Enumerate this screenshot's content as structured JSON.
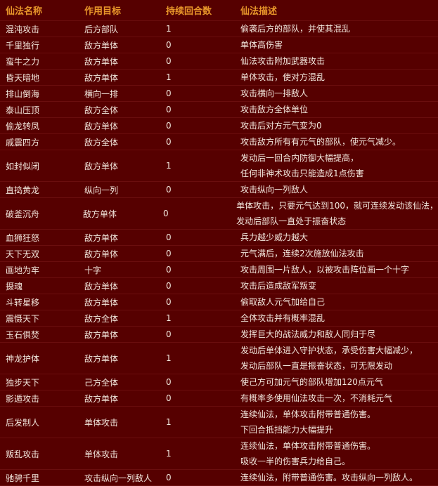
{
  "table": {
    "header": [
      "仙法名称",
      "作用目标",
      "持续回合数",
      "仙法描述"
    ],
    "rows": [
      [
        "混沌攻击",
        "后方部队",
        1,
        [
          "偷袭后方的部队，并使其混乱"
        ]
      ],
      [
        "千里独行",
        "敌方单体",
        0,
        [
          "单体高伤害"
        ]
      ],
      [
        "蛮牛之力",
        "敌方单体",
        0,
        [
          "仙法攻击附加武器攻击"
        ]
      ],
      [
        "昏天暗地",
        "敌方单体",
        1,
        [
          "单体攻击，使对方混乱"
        ]
      ],
      [
        "排山倒海",
        "横向一排",
        0,
        [
          "攻击横向一排敌人"
        ]
      ],
      [
        "泰山压顶",
        "敌方全体",
        0,
        [
          "攻击敌方全体单位"
        ]
      ],
      [
        "偷龙转凤",
        "敌方单体",
        0,
        [
          "攻击后对方元气变为0"
        ]
      ],
      [
        "戚震四方",
        "敌方全体",
        0,
        [
          "攻击敌方所有有元气的部队，使元气减少。"
        ]
      ],
      [
        "如封似闭",
        "敌方单体",
        1,
        [
          "发动后一回合内防御大幅提高，",
          "任何非神术攻击只能造成1点伤害"
        ]
      ],
      [
        "直捣黄龙",
        "纵向一列",
        0,
        [
          "攻击纵向一列敌人"
        ]
      ],
      [
        "破釜沉舟",
        "敌方单体",
        0,
        [
          "单体攻击，只要元气达到100，就可连续发动该仙法，",
          "发动后部队一直处于振奋状态"
        ]
      ],
      [
        "血狮狂怒",
        "敌方单体",
        0,
        [
          "兵力越少威力越大"
        ]
      ],
      [
        "天下无双",
        "敌方单体",
        0,
        [
          "元气满后，连续2次施放仙法攻击"
        ]
      ],
      [
        "画地为牢",
        "十字",
        0,
        [
          "攻击周围一片敌人，以被攻击阵位画一个十字"
        ]
      ],
      [
        "摄魂",
        "敌方单体",
        0,
        [
          "攻击后造成敌军叛变"
        ]
      ],
      [
        "斗转星移",
        "敌方单体",
        0,
        [
          "偷取敌人元气加给自己"
        ]
      ],
      [
        "震慑天下",
        "敌方全体",
        1,
        [
          "全体攻击并有概率混乱"
        ]
      ],
      [
        "玉石俱焚",
        "敌方单体",
        0,
        [
          "发挥巨大的战法威力和敌人同归于尽"
        ]
      ],
      [
        "神龙护体",
        "敌方单体",
        1,
        [
          "发动后单体进入守护状态，承受伤害大幅减少，",
          "发动后部队一直是振奋状态，可无限发动"
        ]
      ],
      [
        "独步天下",
        "己方全体",
        0,
        [
          "使己方可加元气的部队增加120点元气"
        ]
      ],
      [
        "影遁攻击",
        "敌方单体",
        0,
        [
          "有概率多使用仙法攻击一次，不消耗元气"
        ]
      ],
      [
        "后发制人",
        "单体攻击",
        1,
        [
          "连续仙法，单体攻击附带普通伤害。",
          "下回合抵挡能力大幅提升"
        ]
      ],
      [
        "叛乱攻击",
        "单体攻击",
        1,
        [
          "连续仙法，单体攻击附带普通伤害。",
          "吸收一半的伤害兵力给自己。"
        ]
      ],
      [
        "驰骋千里",
        "攻击纵向一列敌人",
        0,
        [
          "连续仙法，附带普通伤害。攻击纵向一列敌人。"
        ]
      ]
    ]
  }
}
